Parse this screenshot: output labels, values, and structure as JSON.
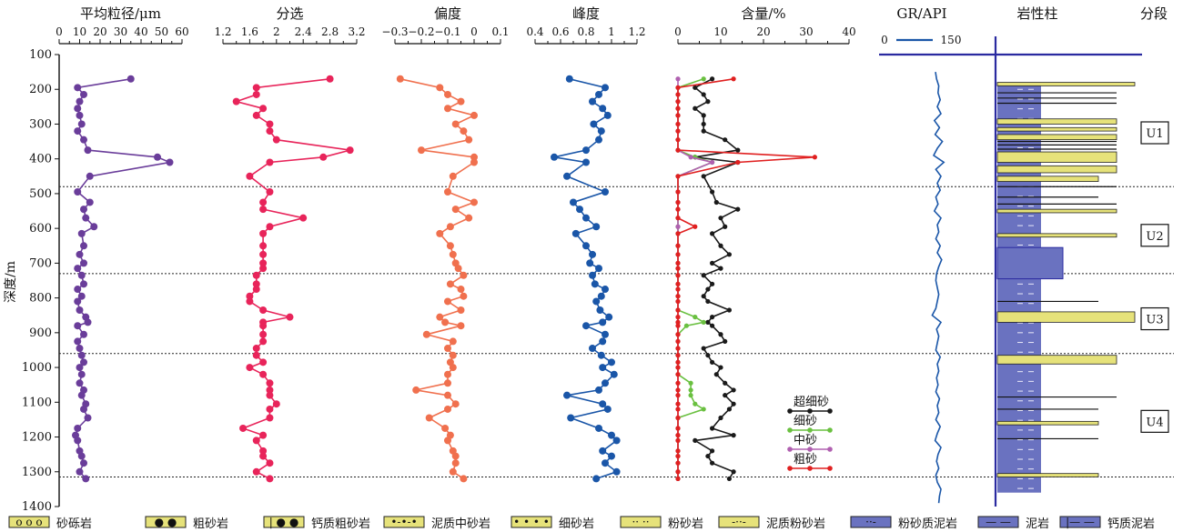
{
  "chart_data": {
    "type": "line",
    "y_axis": {
      "label": "深度/m",
      "ylim": [
        100,
        1400
      ],
      "ticks": [
        100,
        200,
        300,
        400,
        500,
        600,
        700,
        800,
        900,
        1000,
        1100,
        1200,
        1300,
        1400
      ]
    },
    "depths": [
      170,
      195,
      215,
      235,
      255,
      275,
      300,
      320,
      345,
      375,
      395,
      410,
      450,
      495,
      525,
      545,
      570,
      595,
      615,
      650,
      675,
      700,
      715,
      735,
      760,
      775,
      795,
      810,
      835,
      855,
      870,
      880,
      905,
      925,
      945,
      965,
      985,
      1000,
      1020,
      1045,
      1065,
      1080,
      1105,
      1120,
      1145,
      1175,
      1195,
      1210,
      1240,
      1255,
      1275,
      1300,
      1320
    ],
    "panels": [
      {
        "title": "平均粒径/μm",
        "xlim": [
          0,
          60
        ],
        "ticks": [
          "0",
          "10",
          "20",
          "30",
          "40",
          "50",
          "60"
        ],
        "color": "#6a3d9a",
        "values": [
          35,
          9,
          12,
          10,
          9,
          10,
          11,
          9,
          12,
          14,
          48,
          54,
          15,
          9,
          15,
          12,
          13,
          17,
          11,
          12,
          10,
          12,
          9,
          11,
          12,
          9,
          11,
          9,
          10,
          13,
          14,
          9,
          12,
          9,
          10,
          11,
          12,
          10,
          11,
          10,
          12,
          11,
          13,
          12,
          14,
          9,
          8,
          9,
          10,
          11,
          12,
          10,
          13
        ]
      },
      {
        "title": "分选",
        "xlim": [
          1.2,
          3.2
        ],
        "ticks": [
          "1.2",
          "1.6",
          "2",
          "2.4",
          "2.8",
          "3.2"
        ],
        "color": "#e8245a",
        "values": [
          2.8,
          1.7,
          1.7,
          1.4,
          1.8,
          1.7,
          1.9,
          1.9,
          2.0,
          3.1,
          2.7,
          1.9,
          1.6,
          1.9,
          1.8,
          1.8,
          2.4,
          1.9,
          1.8,
          1.8,
          1.8,
          1.8,
          1.8,
          1.7,
          1.7,
          1.7,
          1.6,
          1.6,
          1.8,
          2.2,
          1.8,
          1.8,
          1.8,
          1.8,
          1.7,
          1.7,
          1.8,
          1.6,
          1.8,
          1.9,
          1.9,
          1.9,
          2.0,
          1.9,
          1.9,
          1.5,
          1.8,
          1.7,
          1.8,
          1.8,
          1.9,
          1.7,
          1.9
        ]
      },
      {
        "title": "偏度",
        "xlim": [
          -0.3,
          0.1
        ],
        "ticks": [
          "−0.3",
          "−0.2",
          "−0.1",
          "0",
          "0.1"
        ],
        "color": "#f0704e",
        "values": [
          -0.28,
          -0.13,
          -0.1,
          -0.05,
          -0.1,
          0.0,
          -0.07,
          -0.04,
          -0.02,
          -0.2,
          0.0,
          0.0,
          -0.08,
          -0.1,
          0.0,
          -0.07,
          -0.02,
          -0.09,
          -0.13,
          -0.09,
          -0.08,
          -0.07,
          -0.06,
          -0.04,
          -0.09,
          -0.05,
          -0.04,
          -0.1,
          -0.05,
          -0.13,
          -0.11,
          -0.05,
          -0.18,
          -0.08,
          -0.1,
          -0.08,
          -0.09,
          -0.08,
          -0.1,
          -0.1,
          -0.22,
          -0.1,
          -0.07,
          -0.1,
          -0.17,
          -0.11,
          -0.09,
          -0.1,
          -0.08,
          -0.07,
          -0.07,
          -0.08,
          -0.04
        ]
      },
      {
        "title": "峰度",
        "xlim": [
          0.4,
          1.2
        ],
        "ticks": [
          "0.4",
          "0.6",
          "0.8",
          "1",
          "1.2"
        ],
        "color": "#1a56a8",
        "values": [
          0.67,
          0.95,
          0.9,
          0.85,
          0.93,
          0.97,
          0.86,
          0.92,
          0.9,
          0.8,
          0.55,
          0.8,
          0.65,
          0.95,
          0.7,
          0.75,
          0.8,
          0.88,
          0.72,
          0.8,
          0.85,
          0.83,
          0.9,
          0.85,
          0.87,
          0.95,
          0.92,
          0.88,
          0.91,
          0.98,
          0.93,
          0.8,
          0.95,
          0.93,
          0.85,
          0.92,
          1.0,
          0.93,
          1.02,
          0.95,
          0.9,
          0.65,
          0.93,
          0.97,
          0.68,
          0.9,
          1.0,
          1.04,
          0.93,
          1.0,
          0.95,
          1.04,
          0.88
        ]
      },
      {
        "title": "含量/%",
        "xlim": [
          0,
          40
        ],
        "ticks": [
          "0",
          "10",
          "20",
          "30",
          "40"
        ],
        "series": [
          {
            "name": "超细砂",
            "color": "#1a1a1a",
            "values": [
              8,
              4,
              6,
              7,
              4,
              6,
              6,
              6,
              11,
              14,
              4,
              14,
              6,
              8,
              9,
              14,
              10,
              11,
              8,
              10,
              12,
              8,
              10,
              6,
              8,
              7,
              6,
              7,
              12,
              8,
              7,
              8,
              10,
              11,
              6,
              7,
              8,
              10,
              9,
              11,
              13,
              11,
              13,
              12,
              10,
              8,
              13,
              4,
              8,
              7,
              8,
              13,
              12
            ]
          },
          {
            "name": "细砂",
            "color": "#6ac040",
            "values": [
              6,
              0,
              0,
              0,
              0,
              0,
              0,
              0,
              0,
              0,
              4,
              8,
              0,
              0,
              0,
              0,
              0,
              0,
              0,
              0,
              0,
              0,
              0,
              0,
              0,
              0,
              0,
              0,
              0,
              4,
              6,
              2,
              0,
              0,
              0,
              0,
              0,
              0,
              0,
              3,
              3,
              3,
              4,
              6,
              0,
              0,
              0,
              0,
              0,
              0,
              0,
              0,
              0
            ]
          },
          {
            "name": "中砂",
            "color": "#b060b0",
            "values": [
              0,
              0,
              0,
              0,
              0,
              0,
              0,
              0,
              0,
              0,
              3,
              8,
              0,
              0,
              0,
              0,
              0,
              0,
              0,
              0,
              0,
              0,
              0,
              0,
              0,
              0,
              0,
              0,
              0,
              0,
              0,
              0,
              0,
              0,
              0,
              0,
              0,
              0,
              0,
              0,
              0,
              0,
              0,
              0,
              0,
              0,
              0,
              0,
              0,
              0,
              0,
              0,
              0
            ]
          },
          {
            "name": "粗砂",
            "color": "#e02020",
            "values": [
              13,
              0,
              0,
              0,
              0,
              0,
              0,
              0,
              0,
              0,
              32,
              14,
              0,
              0,
              0,
              0,
              0,
              4,
              0,
              0,
              0,
              0,
              0,
              0,
              0,
              0,
              0,
              0,
              0,
              0,
              0,
              0,
              0,
              0,
              0,
              0,
              0,
              0,
              0,
              0,
              0,
              0,
              0,
              0,
              0,
              0,
              0,
              0,
              0,
              0,
              0,
              0,
              0
            ]
          }
        ]
      }
    ],
    "gr_panel": {
      "title": "GR/API",
      "scale_min": "0",
      "scale_max": "150",
      "color": "#1a56a8",
      "depths": [
        150,
        170,
        190,
        210,
        230,
        250,
        270,
        290,
        310,
        330,
        350,
        370,
        390,
        410,
        430,
        450,
        470,
        490,
        510,
        530,
        550,
        570,
        590,
        610,
        630,
        650,
        670,
        690,
        710,
        730,
        750,
        770,
        790,
        810,
        830,
        850,
        870,
        890,
        910,
        930,
        950,
        970,
        990,
        1010,
        1030,
        1050,
        1070,
        1090,
        1110,
        1130,
        1150,
        1170,
        1190,
        1210,
        1230,
        1250,
        1270,
        1290,
        1310,
        1330,
        1350,
        1370,
        1390
      ],
      "values": [
        95,
        98,
        104,
        102,
        108,
        100,
        110,
        92,
        106,
        94,
        114,
        100,
        90,
        118,
        96,
        110,
        100,
        108,
        96,
        102,
        92,
        110,
        100,
        104,
        96,
        108,
        100,
        112,
        104,
        98,
        96,
        100,
        104,
        100,
        96,
        86,
        110,
        98,
        104,
        100,
        96,
        108,
        100,
        104,
        98,
        102,
        96,
        106,
        100,
        104,
        96,
        108,
        100,
        94,
        110,
        102,
        98,
        104,
        96,
        100,
        110,
        106,
        104
      ]
    },
    "lithology_panel": {
      "title": "岩性柱"
    },
    "segments": {
      "title": "分段",
      "items": [
        {
          "label": "U1",
          "depth": 325
        },
        {
          "label": "U2",
          "depth": 620
        },
        {
          "label": "U3",
          "depth": 860
        },
        {
          "label": "U4",
          "depth": 1155
        }
      ],
      "boundaries": [
        480,
        730,
        960,
        1315
      ]
    },
    "legend": [
      {
        "label": "砂砾岩",
        "fill": "#e6e27a",
        "pattern": "o o o"
      },
      {
        "label": "粗砂岩",
        "fill": "#e6e27a",
        "pattern": "● ●"
      },
      {
        "label": "钙质粗砂岩",
        "fill": "#e6e27a",
        "pattern": "| ● ●"
      },
      {
        "label": "泥质中砂岩",
        "fill": "#e6e27a",
        "pattern": "•-•-•"
      },
      {
        "label": "细砂岩",
        "fill": "#e6e27a",
        "pattern": "• • • •"
      },
      {
        "label": "粉砂岩",
        "fill": "#e6e27a",
        "pattern": "·· ··"
      },
      {
        "label": "泥质粉砂岩",
        "fill": "#e6e27a",
        "pattern": "-··-"
      },
      {
        "label": "粉砂质泥岩",
        "fill": "#6a72c0",
        "pattern": "··-"
      },
      {
        "label": "泥岩",
        "fill": "#6a72c0",
        "pattern": "— —"
      },
      {
        "label": "钙质泥岩",
        "fill": "#6a72c0",
        "pattern": "|— —"
      }
    ]
  }
}
